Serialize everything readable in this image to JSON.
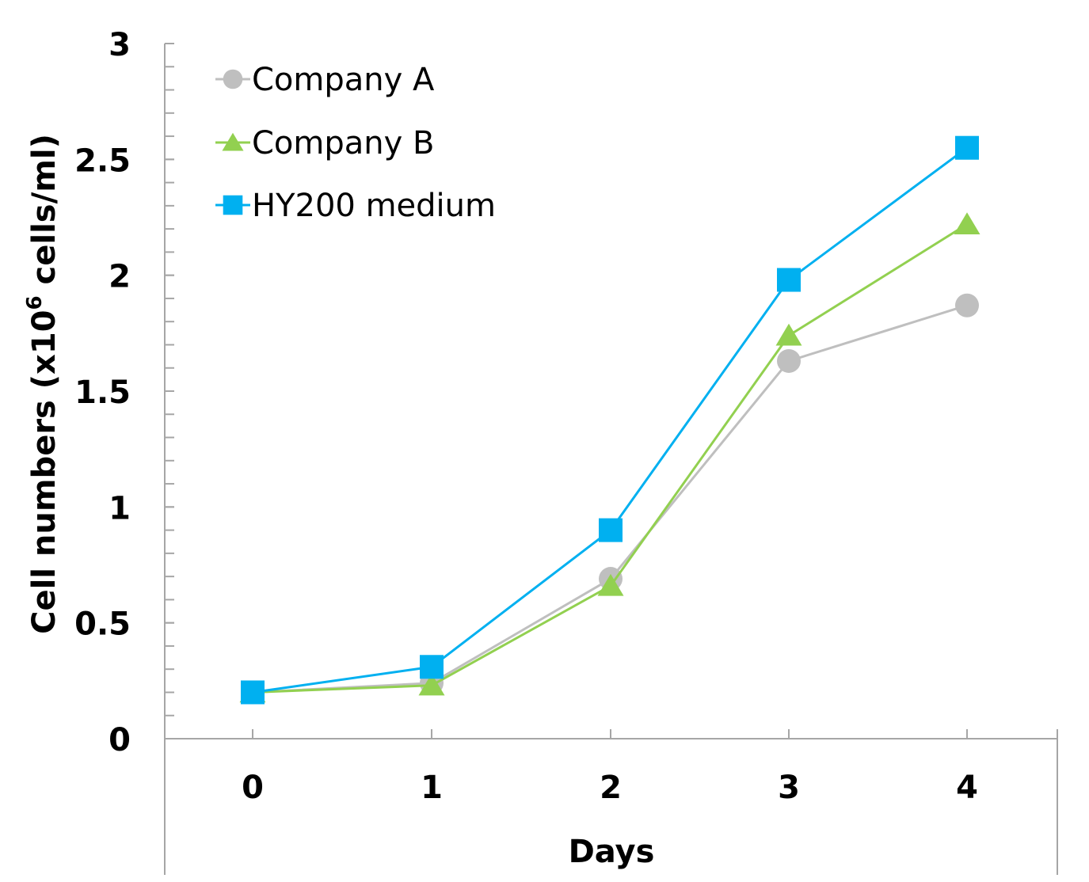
{
  "chart_data": {
    "type": "line",
    "title": "",
    "xlabel": "Days",
    "ylabel": "Cell numbers (x10⁶ cells/ml)",
    "ylabel_parts": {
      "before": "Cell numbers (x10",
      "superscript": "6",
      "after": " cells/ml)"
    },
    "x": [
      0,
      1,
      2,
      3,
      4
    ],
    "x_tick_labels": [
      "0",
      "1",
      "2",
      "3",
      "4"
    ],
    "ylim": [
      0,
      3
    ],
    "y_ticks": [
      0,
      0.5,
      1,
      1.5,
      2,
      2.5,
      3
    ],
    "y_tick_labels": [
      "0",
      "0.5",
      "1",
      "1.5",
      "2",
      "2.5",
      "3"
    ],
    "y_minor_step": 0.1,
    "grid": false,
    "legend_position": "top-left",
    "series": [
      {
        "name": "Company A",
        "marker": "circle",
        "color": "#bfbfbf",
        "values": [
          0.2,
          0.24,
          0.69,
          1.63,
          1.87
        ]
      },
      {
        "name": "Company B",
        "marker": "triangle",
        "color": "#92d050",
        "values": [
          0.2,
          0.23,
          0.66,
          1.74,
          2.22
        ]
      },
      {
        "name": "HY200 medium",
        "marker": "square",
        "color": "#00b0f0",
        "values": [
          0.2,
          0.31,
          0.9,
          1.98,
          2.55
        ]
      }
    ]
  }
}
